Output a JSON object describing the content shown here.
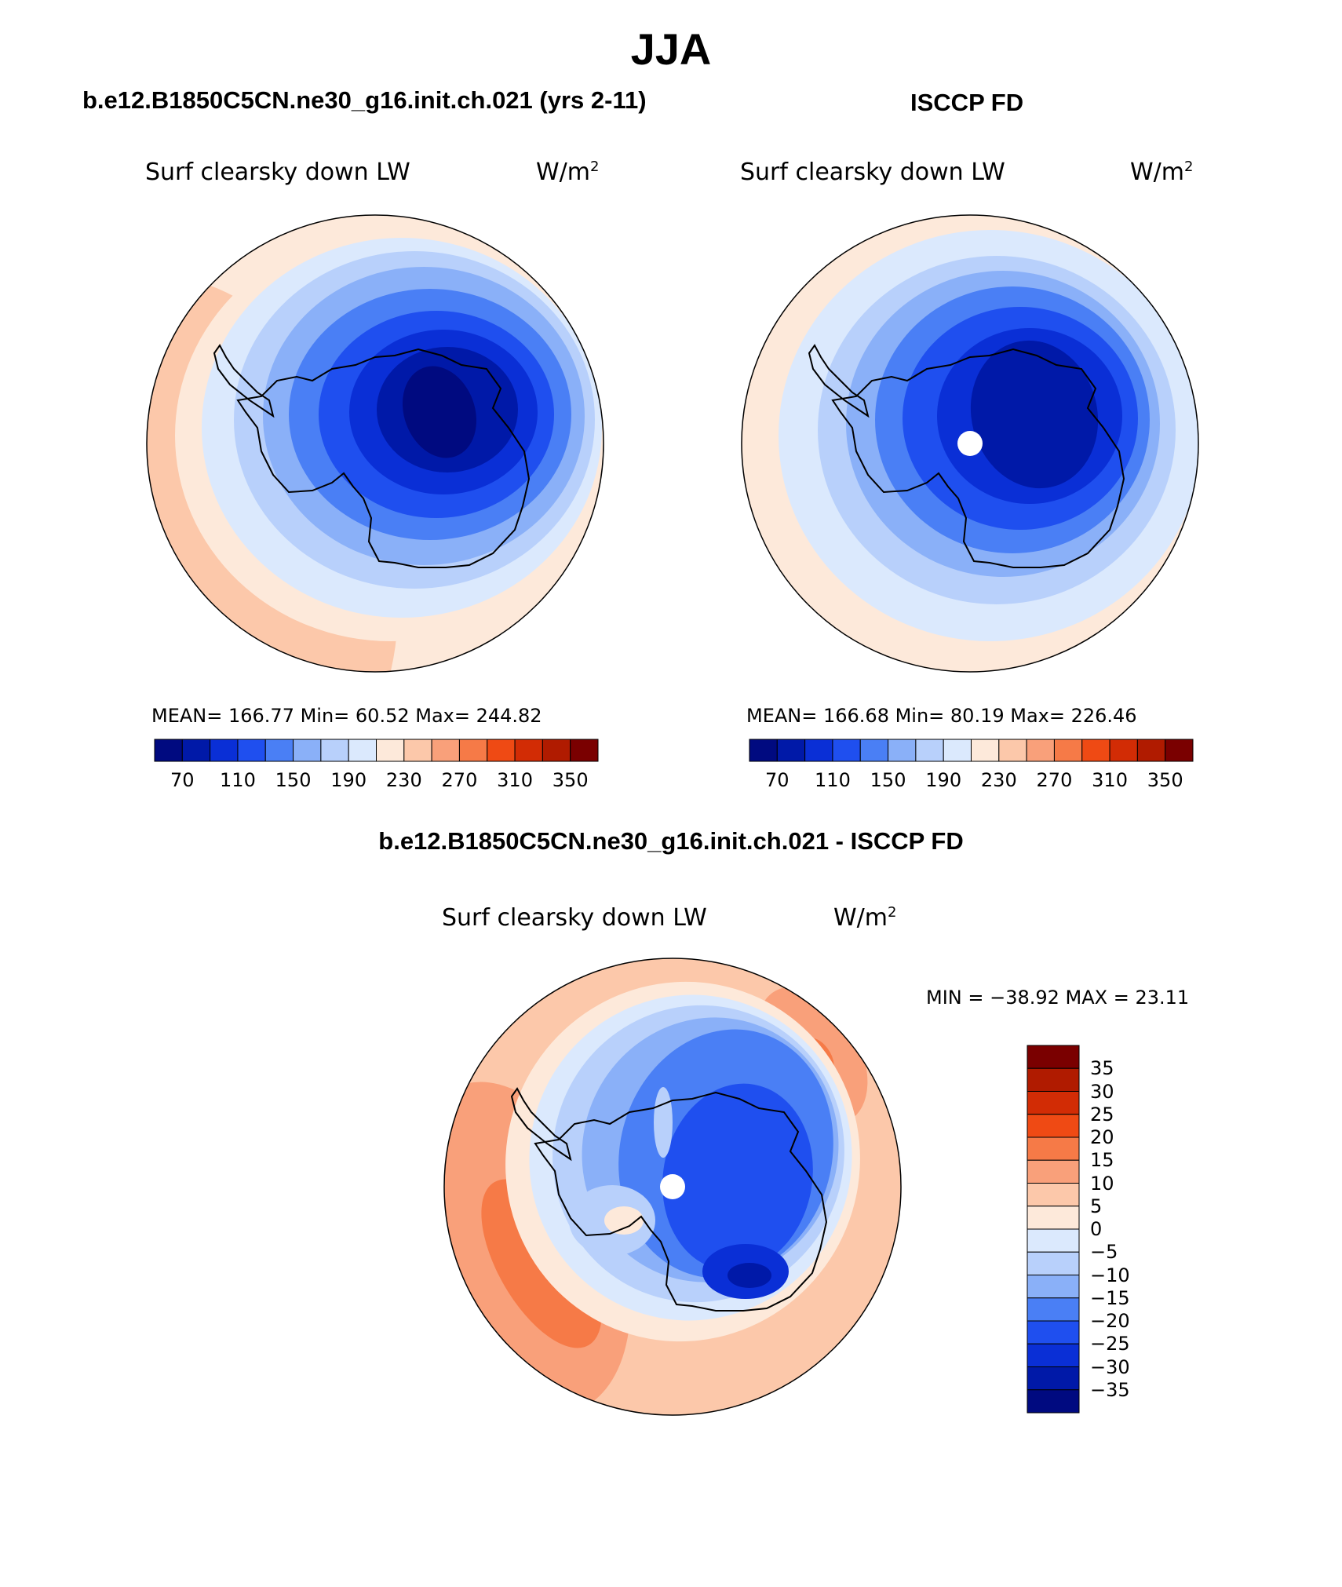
{
  "figure": {
    "title": "JJA",
    "left_subtitle": "b.e12.B1850C5CN.ne30_g16.init.ch.021 (yrs 2-11)",
    "right_subtitle": "ISCCP FD",
    "diff_subtitle": "b.e12.B1850C5CN.ne30_g16.init.ch.021 - ISCCP FD"
  },
  "panels": {
    "model": {
      "variable": "Surf clearsky down LW",
      "units_base": "W/m",
      "units_exp": "2",
      "stats_text": "MEAN= 166.77   Min=   60.52   Max= 244.82"
    },
    "obs": {
      "variable": "Surf clearsky down LW",
      "units_base": "W/m",
      "units_exp": "2",
      "stats_text": "MEAN= 166.68   Min=   80.19   Max= 226.46"
    },
    "diff": {
      "variable": "Surf clearsky down LW",
      "units_base": "W/m",
      "units_exp": "2",
      "stats_text": "MIN = −38.92 MAX =   23.11"
    }
  },
  "chart_data": [
    {
      "type": "heatmap",
      "name": "model",
      "projection": "south polar stereographic",
      "stats": {
        "mean": 166.77,
        "min": 60.52,
        "max": 244.82
      },
      "colorbar": {
        "tick_labels": [
          "70",
          "110",
          "150",
          "190",
          "230",
          "270",
          "310",
          "350"
        ],
        "levels": [
          70,
          90,
          110,
          130,
          150,
          170,
          190,
          210,
          230,
          250,
          270,
          290,
          310,
          330,
          350
        ],
        "colors": [
          "#000a80",
          "#0019a8",
          "#0a2fd6",
          "#1f4fef",
          "#4a7ff5",
          "#8ab0f8",
          "#b8d0fb",
          "#dbe9fd",
          "#fde9da",
          "#fcc8aa",
          "#f9a07a",
          "#f67a47",
          "#ef4a14",
          "#d22c05",
          "#b01b00",
          "#7a0000"
        ]
      }
    },
    {
      "type": "heatmap",
      "name": "obs",
      "projection": "south polar stereographic",
      "stats": {
        "mean": 166.68,
        "min": 80.19,
        "max": 226.46
      },
      "colorbar": {
        "tick_labels": [
          "70",
          "110",
          "150",
          "190",
          "230",
          "270",
          "310",
          "350"
        ],
        "levels": [
          70,
          90,
          110,
          130,
          150,
          170,
          190,
          210,
          230,
          250,
          270,
          290,
          310,
          330,
          350
        ],
        "colors": [
          "#000a80",
          "#0019a8",
          "#0a2fd6",
          "#1f4fef",
          "#4a7ff5",
          "#8ab0f8",
          "#b8d0fb",
          "#dbe9fd",
          "#fde9da",
          "#fcc8aa",
          "#f9a07a",
          "#f67a47",
          "#ef4a14",
          "#d22c05",
          "#b01b00",
          "#7a0000"
        ]
      }
    },
    {
      "type": "heatmap",
      "name": "difference",
      "projection": "south polar stereographic",
      "stats": {
        "min": -38.92,
        "max": 23.11
      },
      "colorbar": {
        "tick_labels": [
          "35",
          "30",
          "25",
          "20",
          "15",
          "10",
          "5",
          "0",
          "−5",
          "−10",
          "−15",
          "−20",
          "−25",
          "−30",
          "−35"
        ],
        "levels": [
          35,
          30,
          25,
          20,
          15,
          10,
          5,
          0,
          -5,
          -10,
          -15,
          -20,
          -25,
          -30,
          -35
        ],
        "colors": [
          "#7a0000",
          "#b01b00",
          "#d22c05",
          "#ef4a14",
          "#f67a47",
          "#f9a07a",
          "#fcc8aa",
          "#fde9da",
          "#dbe9fd",
          "#b8d0fb",
          "#8ab0f8",
          "#4a7ff5",
          "#1f4fef",
          "#0a2fd6",
          "#0019a8",
          "#000a80"
        ]
      }
    }
  ]
}
